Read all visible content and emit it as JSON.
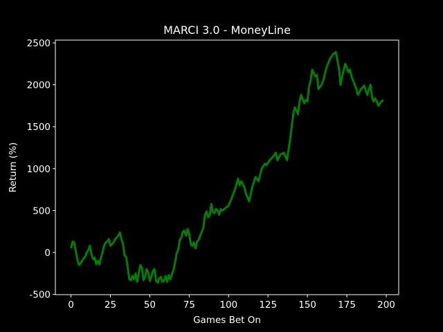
{
  "chart_data": {
    "type": "line",
    "title": "MARCI 3.0 - MoneyLine",
    "x_label": "Games Bet On",
    "y_label": "Return (%)",
    "color": "#008000",
    "x": [
      0,
      1,
      2,
      3,
      4,
      5,
      6,
      7,
      8,
      9,
      10,
      11,
      12,
      13,
      14,
      15,
      16,
      17,
      18,
      19,
      20,
      21,
      22,
      23,
      24,
      25,
      26,
      27,
      28,
      29,
      30,
      31,
      32,
      33,
      34,
      35,
      36,
      37,
      38,
      39,
      40,
      41,
      42,
      43,
      44,
      45,
      46,
      47,
      48,
      49,
      50,
      51,
      52,
      53,
      54,
      55,
      56,
      57,
      58,
      59,
      60,
      61,
      62,
      63,
      64,
      65,
      66,
      67,
      68,
      69,
      70,
      71,
      72,
      73,
      74,
      75,
      76,
      77,
      78,
      79,
      80,
      81,
      82,
      83,
      84,
      85,
      86,
      87,
      88,
      89,
      90,
      91,
      92,
      93,
      94,
      95,
      96,
      98,
      100,
      102,
      104,
      106,
      107,
      108,
      110,
      111,
      113,
      115,
      117,
      119,
      121,
      123,
      124,
      126,
      128,
      130,
      131,
      133,
      135,
      137,
      139,
      141,
      142,
      144,
      145,
      146,
      148,
      149,
      150,
      151,
      152,
      153,
      155,
      156,
      157,
      159,
      160,
      162,
      164,
      166,
      168,
      170,
      171,
      172,
      174,
      176,
      177,
      178,
      180,
      181,
      182,
      184,
      186,
      188,
      189,
      190,
      191,
      192,
      193,
      194,
      195,
      196,
      198
    ],
    "values": [
      50,
      130,
      120,
      20,
      -80,
      -150,
      -130,
      -100,
      -70,
      -50,
      0,
      30,
      80,
      -20,
      -80,
      -60,
      -140,
      -100,
      -140,
      -60,
      0,
      80,
      120,
      130,
      160,
      80,
      100,
      120,
      160,
      180,
      200,
      240,
      160,
      100,
      -40,
      -50,
      -180,
      -320,
      -330,
      -280,
      -320,
      -250,
      -350,
      -240,
      -150,
      -180,
      -330,
      -290,
      -200,
      -240,
      -340,
      -290,
      -220,
      -200,
      -340,
      -360,
      -310,
      -290,
      -350,
      -340,
      -280,
      -350,
      -270,
      -320,
      -260,
      -210,
      -120,
      -10,
      30,
      150,
      180,
      250,
      260,
      200,
      280,
      220,
      100,
      80,
      120,
      50,
      130,
      150,
      200,
      250,
      300,
      450,
      490,
      420,
      440,
      580,
      480,
      470,
      520,
      500,
      450,
      520,
      500,
      530,
      560,
      650,
      750,
      880,
      800,
      850,
      780,
      700,
      610,
      780,
      900,
      850,
      1000,
      1060,
      1040,
      1100,
      1140,
      1190,
      1100,
      1170,
      1190,
      1100,
      1350,
      1650,
      1730,
      1650,
      1800,
      1880,
      1780,
      1820,
      1800,
      1980,
      2050,
      2180,
      2100,
      2120,
      1950,
      2000,
      2050,
      2200,
      2300,
      2360,
      2390,
      2200,
      2000,
      2100,
      2250,
      2150,
      2180,
      2100,
      2000,
      1950,
      1880,
      1950,
      1990,
      1880,
      1950,
      2000,
      1850,
      1800,
      1840,
      1800,
      1750,
      1780,
      1820
    ],
    "xlim": [
      -9.9,
      207.9
    ],
    "ylim": [
      -503,
      2533
    ],
    "xticks": [
      0,
      25,
      50,
      75,
      100,
      125,
      150,
      175,
      200
    ],
    "yticks": [
      -500,
      0,
      500,
      1000,
      1500,
      2000,
      2500
    ]
  }
}
